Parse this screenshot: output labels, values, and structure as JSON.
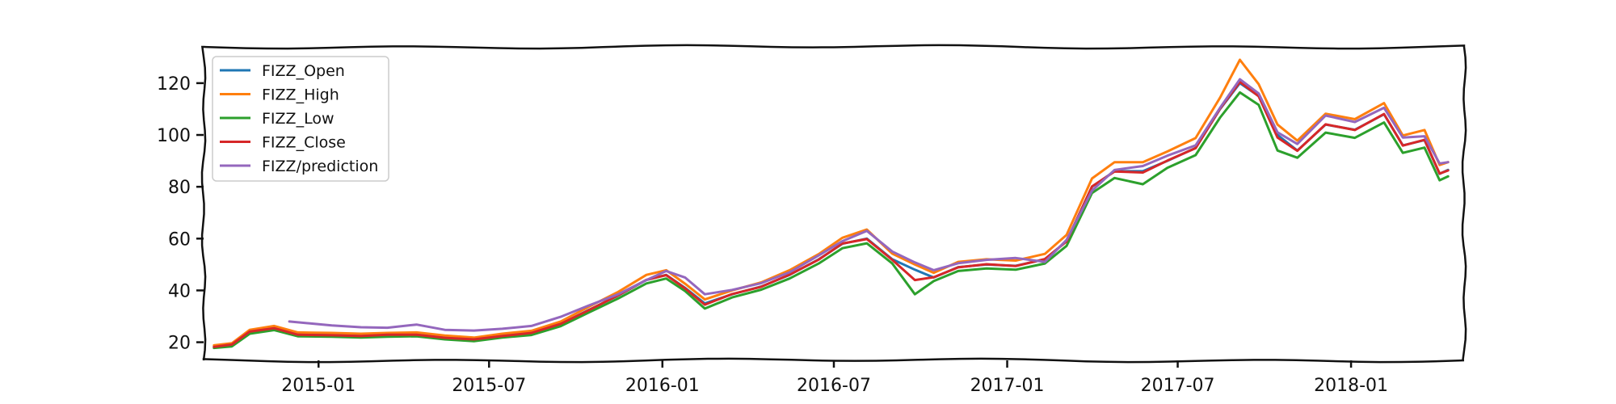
{
  "chart_data": {
    "type": "line",
    "title": "",
    "xlabel": "",
    "ylabel": "",
    "xlim": [
      "2014-09-01",
      "2018-05-01"
    ],
    "ylim": [
      13,
      134
    ],
    "grid": false,
    "legend_position": "top-left",
    "x_ticks": [
      {
        "date": "2015-01-01",
        "label": "2015-01"
      },
      {
        "date": "2015-07-01",
        "label": "2015-07"
      },
      {
        "date": "2016-01-01",
        "label": "2016-01"
      },
      {
        "date": "2016-07-01",
        "label": "2016-07"
      },
      {
        "date": "2017-01-01",
        "label": "2017-01"
      },
      {
        "date": "2017-07-01",
        "label": "2017-07"
      },
      {
        "date": "2018-01-01",
        "label": "2018-01"
      }
    ],
    "y_ticks": [
      {
        "value": 20,
        "label": "20"
      },
      {
        "value": 40,
        "label": "40"
      },
      {
        "value": 60,
        "label": "60"
      },
      {
        "value": 80,
        "label": "80"
      },
      {
        "value": 100,
        "label": "100"
      },
      {
        "value": 120,
        "label": "120"
      }
    ],
    "series": [
      {
        "name": "FIZZ_Open",
        "color": "#1f77b4",
        "points": [
          [
            "2014-09-12",
            18.3
          ],
          [
            "2014-10-01",
            19.0
          ],
          [
            "2014-10-20",
            24.0
          ],
          [
            "2014-11-15",
            25.5
          ],
          [
            "2014-12-10",
            23.0
          ],
          [
            "2015-01-15",
            22.8
          ],
          [
            "2015-02-15",
            22.5
          ],
          [
            "2015-03-15",
            22.8
          ],
          [
            "2015-04-15",
            23.0
          ],
          [
            "2015-05-15",
            21.8
          ],
          [
            "2015-06-15",
            21.0
          ],
          [
            "2015-07-15",
            22.5
          ],
          [
            "2015-08-15",
            23.5
          ],
          [
            "2015-09-15",
            27.0
          ],
          [
            "2015-10-15",
            32.5
          ],
          [
            "2015-11-15",
            38.0
          ],
          [
            "2015-12-15",
            44.0
          ],
          [
            "2016-01-05",
            46.0
          ],
          [
            "2016-01-25",
            41.0
          ],
          [
            "2016-02-15",
            35.0
          ],
          [
            "2016-03-15",
            38.5
          ],
          [
            "2016-04-15",
            41.5
          ],
          [
            "2016-05-15",
            46.0
          ],
          [
            "2016-06-15",
            52.0
          ],
          [
            "2016-07-10",
            58.0
          ],
          [
            "2016-08-05",
            60.0
          ],
          [
            "2016-09-01",
            52.0
          ],
          [
            "2016-09-25",
            48.0
          ],
          [
            "2016-10-15",
            45.0
          ],
          [
            "2016-11-10",
            49.0
          ],
          [
            "2016-12-10",
            50.0
          ],
          [
            "2017-01-10",
            49.5
          ],
          [
            "2017-02-10",
            52.0
          ],
          [
            "2017-03-05",
            59.0
          ],
          [
            "2017-04-01",
            80.0
          ],
          [
            "2017-04-25",
            86.0
          ],
          [
            "2017-05-25",
            86.0
          ],
          [
            "2017-06-20",
            90.0
          ],
          [
            "2017-07-20",
            95.0
          ],
          [
            "2017-08-15",
            110.0
          ],
          [
            "2017-09-05",
            120.0
          ],
          [
            "2017-09-25",
            115.0
          ],
          [
            "2017-10-15",
            100.0
          ],
          [
            "2017-11-05",
            94.0
          ],
          [
            "2017-12-05",
            104.0
          ],
          [
            "2018-01-05",
            102.0
          ],
          [
            "2018-02-05",
            108.0
          ],
          [
            "2018-02-25",
            96.0
          ],
          [
            "2018-03-20",
            98.0
          ],
          [
            "2018-04-05",
            85.0
          ],
          [
            "2018-04-14",
            86.5
          ]
        ]
      },
      {
        "name": "FIZZ_High",
        "color": "#ff7f0e",
        "points": [
          [
            "2014-09-12",
            18.8
          ],
          [
            "2014-10-01",
            19.6
          ],
          [
            "2014-10-20",
            24.8
          ],
          [
            "2014-11-15",
            26.3
          ],
          [
            "2014-12-10",
            23.8
          ],
          [
            "2015-01-15",
            23.6
          ],
          [
            "2015-02-15",
            23.3
          ],
          [
            "2015-03-15",
            23.6
          ],
          [
            "2015-04-15",
            23.8
          ],
          [
            "2015-05-15",
            22.6
          ],
          [
            "2015-06-15",
            21.8
          ],
          [
            "2015-07-15",
            23.3
          ],
          [
            "2015-08-15",
            24.4
          ],
          [
            "2015-09-15",
            28.0
          ],
          [
            "2015-10-15",
            33.7
          ],
          [
            "2015-11-15",
            39.4
          ],
          [
            "2015-12-15",
            46.0
          ],
          [
            "2016-01-05",
            47.8
          ],
          [
            "2016-01-25",
            42.6
          ],
          [
            "2016-02-15",
            36.5
          ],
          [
            "2016-03-15",
            40.0
          ],
          [
            "2016-04-15",
            43.1
          ],
          [
            "2016-05-15",
            47.8
          ],
          [
            "2016-06-15",
            54.0
          ],
          [
            "2016-07-10",
            60.3
          ],
          [
            "2016-08-05",
            63.5
          ],
          [
            "2016-09-01",
            54.2
          ],
          [
            "2016-09-25",
            50.0
          ],
          [
            "2016-10-15",
            46.8
          ],
          [
            "2016-11-10",
            51.0
          ],
          [
            "2016-12-10",
            52.0
          ],
          [
            "2017-01-10",
            51.5
          ],
          [
            "2017-02-10",
            54.1
          ],
          [
            "2017-03-05",
            61.4
          ],
          [
            "2017-04-01",
            83.2
          ],
          [
            "2017-04-25",
            89.5
          ],
          [
            "2017-05-25",
            89.5
          ],
          [
            "2017-06-20",
            93.6
          ],
          [
            "2017-07-20",
            98.8
          ],
          [
            "2017-08-15",
            114.4
          ],
          [
            "2017-09-05",
            129.0
          ],
          [
            "2017-09-25",
            119.6
          ],
          [
            "2017-10-15",
            104.0
          ],
          [
            "2017-11-05",
            97.8
          ],
          [
            "2017-12-05",
            108.2
          ],
          [
            "2018-01-05",
            106.1
          ],
          [
            "2018-02-05",
            112.3
          ],
          [
            "2018-02-25",
            99.8
          ],
          [
            "2018-03-20",
            101.9
          ],
          [
            "2018-04-05",
            88.4
          ],
          [
            "2018-04-14",
            89.5
          ]
        ]
      },
      {
        "name": "FIZZ_Low",
        "color": "#2ca02c",
        "points": [
          [
            "2014-09-12",
            17.8
          ],
          [
            "2014-10-01",
            18.4
          ],
          [
            "2014-10-20",
            23.3
          ],
          [
            "2014-11-15",
            24.7
          ],
          [
            "2014-12-10",
            22.3
          ],
          [
            "2015-01-15",
            22.1
          ],
          [
            "2015-02-15",
            21.8
          ],
          [
            "2015-03-15",
            22.1
          ],
          [
            "2015-04-15",
            22.3
          ],
          [
            "2015-05-15",
            21.1
          ],
          [
            "2015-06-15",
            20.4
          ],
          [
            "2015-07-15",
            21.8
          ],
          [
            "2015-08-15",
            22.8
          ],
          [
            "2015-09-15",
            26.2
          ],
          [
            "2015-10-15",
            31.5
          ],
          [
            "2015-11-15",
            36.9
          ],
          [
            "2015-12-15",
            42.7
          ],
          [
            "2016-01-05",
            44.6
          ],
          [
            "2016-01-25",
            39.8
          ],
          [
            "2016-02-15",
            33.0
          ],
          [
            "2016-03-15",
            37.3
          ],
          [
            "2016-04-15",
            40.3
          ],
          [
            "2016-05-15",
            44.6
          ],
          [
            "2016-06-15",
            50.4
          ],
          [
            "2016-07-10",
            56.3
          ],
          [
            "2016-08-05",
            58.2
          ],
          [
            "2016-09-01",
            50.4
          ],
          [
            "2016-09-25",
            38.5
          ],
          [
            "2016-10-15",
            43.6
          ],
          [
            "2016-11-10",
            47.5
          ],
          [
            "2016-12-10",
            48.5
          ],
          [
            "2017-01-10",
            48.0
          ],
          [
            "2017-02-10",
            50.4
          ],
          [
            "2017-03-05",
            57.2
          ],
          [
            "2017-04-01",
            77.6
          ],
          [
            "2017-04-25",
            83.4
          ],
          [
            "2017-05-25",
            81.0
          ],
          [
            "2017-06-20",
            87.3
          ],
          [
            "2017-07-20",
            92.2
          ],
          [
            "2017-08-15",
            106.7
          ],
          [
            "2017-09-05",
            116.4
          ],
          [
            "2017-09-25",
            111.6
          ],
          [
            "2017-10-15",
            94.0
          ],
          [
            "2017-11-05",
            91.2
          ],
          [
            "2017-12-05",
            100.9
          ],
          [
            "2018-01-05",
            98.9
          ],
          [
            "2018-02-05",
            104.8
          ],
          [
            "2018-02-25",
            93.1
          ],
          [
            "2018-03-20",
            95.1
          ],
          [
            "2018-04-05",
            82.5
          ],
          [
            "2018-04-14",
            84.0
          ]
        ]
      },
      {
        "name": "FIZZ_Close",
        "color": "#d62728",
        "points": [
          [
            "2014-09-12",
            18.2
          ],
          [
            "2014-10-01",
            19.1
          ],
          [
            "2014-10-20",
            24.1
          ],
          [
            "2014-11-15",
            25.4
          ],
          [
            "2014-12-10",
            22.9
          ],
          [
            "2015-01-15",
            22.7
          ],
          [
            "2015-02-15",
            22.4
          ],
          [
            "2015-03-15",
            22.9
          ],
          [
            "2015-04-15",
            22.9
          ],
          [
            "2015-05-15",
            21.7
          ],
          [
            "2015-06-15",
            21.1
          ],
          [
            "2015-07-15",
            22.4
          ],
          [
            "2015-08-15",
            23.6
          ],
          [
            "2015-09-15",
            27.1
          ],
          [
            "2015-10-15",
            32.4
          ],
          [
            "2015-11-15",
            38.1
          ],
          [
            "2015-12-15",
            44.1
          ],
          [
            "2016-01-05",
            45.9
          ],
          [
            "2016-01-25",
            40.8
          ],
          [
            "2016-02-15",
            34.5
          ],
          [
            "2016-03-15",
            38.6
          ],
          [
            "2016-04-15",
            41.4
          ],
          [
            "2016-05-15",
            46.1
          ],
          [
            "2016-06-15",
            51.9
          ],
          [
            "2016-07-10",
            58.1
          ],
          [
            "2016-08-05",
            59.8
          ],
          [
            "2016-09-01",
            51.8
          ],
          [
            "2016-09-25",
            44.0
          ],
          [
            "2016-10-15",
            45.1
          ],
          [
            "2016-11-10",
            48.9
          ],
          [
            "2016-12-10",
            50.1
          ],
          [
            "2017-01-10",
            49.4
          ],
          [
            "2017-02-10",
            52.1
          ],
          [
            "2017-03-05",
            58.9
          ],
          [
            "2017-04-01",
            80.1
          ],
          [
            "2017-04-25",
            85.9
          ],
          [
            "2017-05-25",
            85.5
          ],
          [
            "2017-06-20",
            90.1
          ],
          [
            "2017-07-20",
            94.9
          ],
          [
            "2017-08-15",
            110.1
          ],
          [
            "2017-09-05",
            120.5
          ],
          [
            "2017-09-25",
            114.9
          ],
          [
            "2017-10-15",
            99.0
          ],
          [
            "2017-11-05",
            93.9
          ],
          [
            "2017-12-05",
            104.1
          ],
          [
            "2018-01-05",
            101.9
          ],
          [
            "2018-02-05",
            108.1
          ],
          [
            "2018-02-25",
            95.9
          ],
          [
            "2018-03-20",
            98.1
          ],
          [
            "2018-04-05",
            85.1
          ],
          [
            "2018-04-14",
            86.3
          ]
        ]
      },
      {
        "name": "FIZZ/prediction",
        "color": "#9467bd",
        "points": [
          [
            "2014-12-01",
            28.0
          ],
          [
            "2015-01-15",
            26.5
          ],
          [
            "2015-02-15",
            25.8
          ],
          [
            "2015-03-15",
            25.6
          ],
          [
            "2015-04-15",
            26.8
          ],
          [
            "2015-05-15",
            24.8
          ],
          [
            "2015-06-15",
            24.5
          ],
          [
            "2015-07-15",
            25.2
          ],
          [
            "2015-08-15",
            26.3
          ],
          [
            "2015-09-15",
            29.8
          ],
          [
            "2015-10-15",
            34.2
          ],
          [
            "2015-11-15",
            38.5
          ],
          [
            "2015-12-15",
            44.0
          ],
          [
            "2016-01-05",
            47.5
          ],
          [
            "2016-01-25",
            45.0
          ],
          [
            "2016-02-15",
            38.5
          ],
          [
            "2016-03-15",
            40.2
          ],
          [
            "2016-04-15",
            42.8
          ],
          [
            "2016-05-15",
            47.0
          ],
          [
            "2016-06-15",
            53.5
          ],
          [
            "2016-07-10",
            59.0
          ],
          [
            "2016-08-05",
            63.0
          ],
          [
            "2016-09-01",
            55.0
          ],
          [
            "2016-09-25",
            50.8
          ],
          [
            "2016-10-15",
            47.8
          ],
          [
            "2016-11-10",
            50.5
          ],
          [
            "2016-12-10",
            51.8
          ],
          [
            "2017-01-10",
            52.5
          ],
          [
            "2017-02-10",
            51.0
          ],
          [
            "2017-03-05",
            59.5
          ],
          [
            "2017-04-01",
            78.5
          ],
          [
            "2017-04-25",
            86.5
          ],
          [
            "2017-05-25",
            88.0
          ],
          [
            "2017-06-20",
            92.0
          ],
          [
            "2017-07-20",
            96.0
          ],
          [
            "2017-08-15",
            110.5
          ],
          [
            "2017-09-05",
            121.5
          ],
          [
            "2017-09-25",
            116.0
          ],
          [
            "2017-10-15",
            101.0
          ],
          [
            "2017-11-05",
            96.5
          ],
          [
            "2017-12-05",
            107.5
          ],
          [
            "2018-01-05",
            105.0
          ],
          [
            "2018-02-05",
            110.5
          ],
          [
            "2018-02-25",
            99.0
          ],
          [
            "2018-03-20",
            99.5
          ],
          [
            "2018-04-05",
            89.0
          ],
          [
            "2018-04-14",
            89.5
          ]
        ]
      }
    ]
  }
}
